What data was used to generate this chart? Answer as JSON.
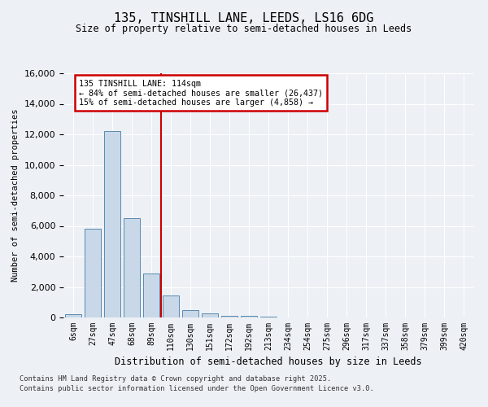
{
  "title_line1": "135, TINSHILL LANE, LEEDS, LS16 6DG",
  "title_line2": "Size of property relative to semi-detached houses in Leeds",
  "xlabel": "Distribution of semi-detached houses by size in Leeds",
  "ylabel": "Number of semi-detached properties",
  "bin_labels": [
    "6sqm",
    "27sqm",
    "47sqm",
    "68sqm",
    "89sqm",
    "110sqm",
    "130sqm",
    "151sqm",
    "172sqm",
    "192sqm",
    "213sqm",
    "234sqm",
    "254sqm",
    "275sqm",
    "296sqm",
    "317sqm",
    "337sqm",
    "358sqm",
    "379sqm",
    "399sqm",
    "420sqm"
  ],
  "bar_values": [
    200,
    5800,
    12200,
    6500,
    2900,
    1450,
    500,
    250,
    130,
    90,
    30,
    10,
    0,
    0,
    0,
    0,
    0,
    0,
    0,
    0,
    0
  ],
  "bar_color": "#c8d8e8",
  "bar_edge_color": "#5a8ab0",
  "property_bin_index": 5,
  "vline_color": "#cc0000",
  "annotation_text": "135 TINSHILL LANE: 114sqm\n← 84% of semi-detached houses are smaller (26,437)\n15% of semi-detached houses are larger (4,858) →",
  "annotation_box_color": "#cc0000",
  "annotation_bg": "#ffffff",
  "footer_line1": "Contains HM Land Registry data © Crown copyright and database right 2025.",
  "footer_line2": "Contains public sector information licensed under the Open Government Licence v3.0.",
  "ylim": [
    0,
    16000
  ],
  "yticks": [
    0,
    2000,
    4000,
    6000,
    8000,
    10000,
    12000,
    14000,
    16000
  ],
  "background_color": "#edf0f5",
  "grid_color": "#ffffff"
}
